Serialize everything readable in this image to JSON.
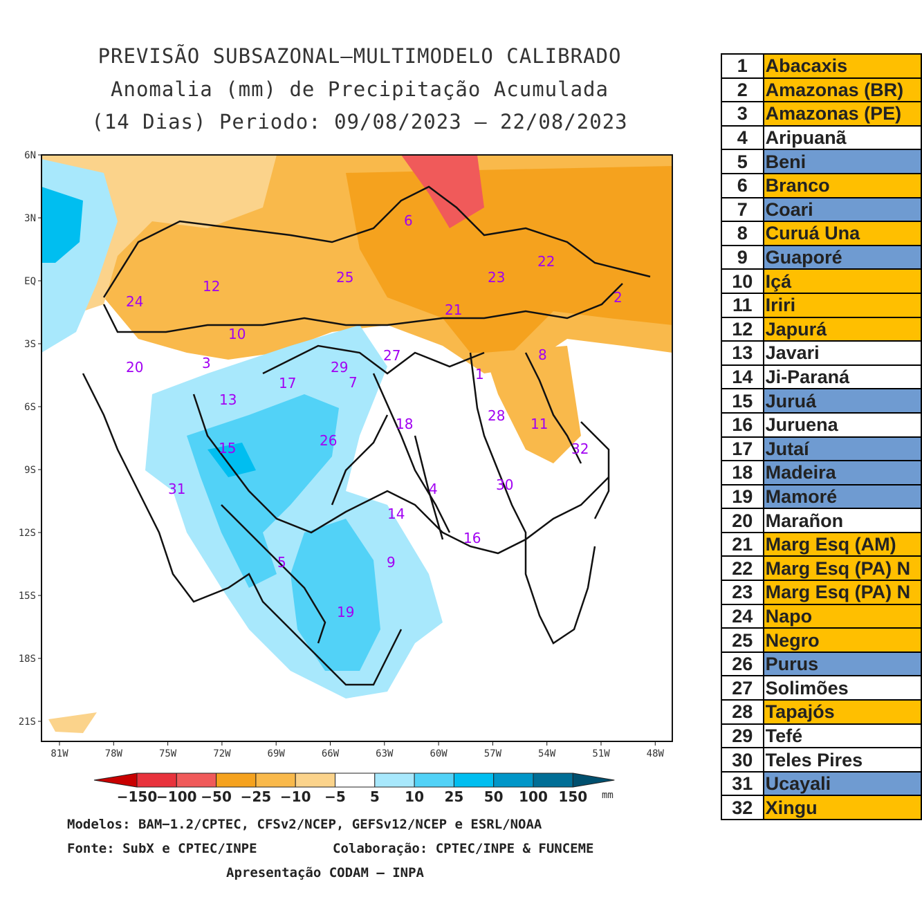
{
  "title": {
    "line1": "PREVISÃO SUBSAZONAL—MULTIMODELO CALIBRADO",
    "line2": "Anomalia (mm) de Precipitação Acumulada",
    "line3": "(14 Dias) Periodo: 09/08/2023 — 22/08/2023"
  },
  "map": {
    "lat_labels": [
      "6N",
      "3N",
      "EQ",
      "3S",
      "6S",
      "9S",
      "12S",
      "15S",
      "18S",
      "21S"
    ],
    "lon_labels": [
      "81W",
      "78W",
      "75W",
      "72W",
      "69W",
      "66W",
      "63W",
      "60W",
      "57W",
      "54W",
      "51W",
      "48W"
    ],
    "basin_labels": [
      "1",
      "2",
      "3",
      "4",
      "5",
      "6",
      "7",
      "8",
      "9",
      "10",
      "11",
      "12",
      "13",
      "14",
      "15",
      "16",
      "17",
      "18",
      "19",
      "20",
      "21",
      "22",
      "23",
      "24",
      "25",
      "26",
      "27",
      "28",
      "29",
      "30",
      "31",
      "32"
    ]
  },
  "colorbar": {
    "labels": [
      "−150",
      "−100",
      "−50",
      "−25",
      "−10",
      "−5",
      "5",
      "10",
      "25",
      "50",
      "100",
      "150"
    ],
    "unit": "mm",
    "colors": [
      "#c80000",
      "#e8323c",
      "#f05a5a",
      "#f5a21e",
      "#f9b94b",
      "#fbd38b",
      "#ffffff",
      "#a8e8fc",
      "#52d2f7",
      "#00bef0",
      "#0096c8",
      "#006e96",
      "#004f6e"
    ]
  },
  "footer": {
    "models": "Modelos: BAM−1.2/CPTEC, CFSv2/NCEP, GEFSv12/NCEP e ESRL/NOAA",
    "source": "Fonte: SubX e CPTEC/INPE",
    "collab": "Colaboração: CPTEC/INPE & FUNCEME",
    "presentation": "Apresentação CODAM — INPA"
  },
  "legend": [
    {
      "n": "1",
      "name": "Abacaxis",
      "cls": "orange"
    },
    {
      "n": "2",
      "name": "Amazonas (BR)",
      "cls": "orange"
    },
    {
      "n": "3",
      "name": "Amazonas (PE)",
      "cls": "orange"
    },
    {
      "n": "4",
      "name": "Aripuanã",
      "cls": "white"
    },
    {
      "n": "5",
      "name": "Beni",
      "cls": "blue"
    },
    {
      "n": "6",
      "name": "Branco",
      "cls": "orange"
    },
    {
      "n": "7",
      "name": "Coari",
      "cls": "blue"
    },
    {
      "n": "8",
      "name": "Curuá Una",
      "cls": "orange"
    },
    {
      "n": "9",
      "name": "Guaporé",
      "cls": "blue"
    },
    {
      "n": "10",
      "name": "Içá",
      "cls": "orange"
    },
    {
      "n": "11",
      "name": "Iriri",
      "cls": "orange"
    },
    {
      "n": "12",
      "name": "Japurá",
      "cls": "orange"
    },
    {
      "n": "13",
      "name": "Javari",
      "cls": "white"
    },
    {
      "n": "14",
      "name": "Ji-Paraná",
      "cls": "white"
    },
    {
      "n": "15",
      "name": "Juruá",
      "cls": "blue"
    },
    {
      "n": "16",
      "name": "Juruena",
      "cls": "white"
    },
    {
      "n": "17",
      "name": "Jutaí",
      "cls": "blue"
    },
    {
      "n": "18",
      "name": "Madeira",
      "cls": "blue"
    },
    {
      "n": "19",
      "name": "Mamoré",
      "cls": "blue"
    },
    {
      "n": "20",
      "name": "Marañon",
      "cls": "white"
    },
    {
      "n": "21",
      "name": "Marg Esq (AM)",
      "cls": "orange"
    },
    {
      "n": "22",
      "name": "Marg Esq (PA) N",
      "cls": "orange"
    },
    {
      "n": "23",
      "name": "Marg Esq (PA) N",
      "cls": "orange"
    },
    {
      "n": "24",
      "name": "Napo",
      "cls": "orange"
    },
    {
      "n": "25",
      "name": "Negro",
      "cls": "orange"
    },
    {
      "n": "26",
      "name": "Purus",
      "cls": "blue"
    },
    {
      "n": "27",
      "name": "Solimões",
      "cls": "white"
    },
    {
      "n": "28",
      "name": "Tapajós",
      "cls": "orange"
    },
    {
      "n": "29",
      "name": "Tefé",
      "cls": "white"
    },
    {
      "n": "30",
      "name": "Teles Pires",
      "cls": "white"
    },
    {
      "n": "31",
      "name": "Ucayali",
      "cls": "blue"
    },
    {
      "n": "32",
      "name": "Xingu",
      "cls": "orange"
    }
  ]
}
